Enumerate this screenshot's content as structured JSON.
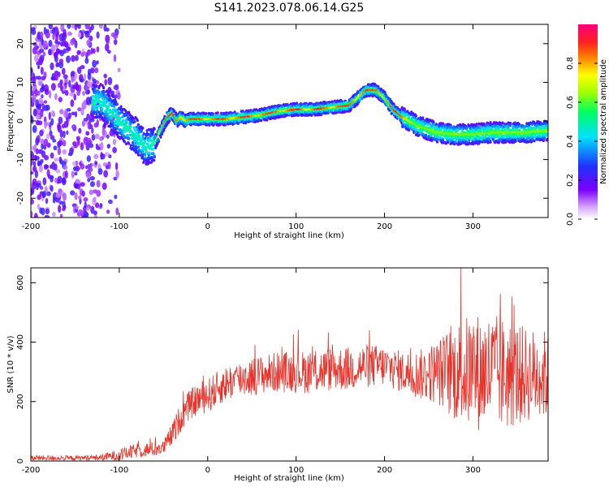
{
  "title": "S141.2023.078.06.14.G25",
  "chart_data": [
    {
      "type": "heatmap",
      "xlabel": "Height of straight line (km)",
      "ylabel": "Frequency (Hz)",
      "xlim": [
        -200,
        385
      ],
      "ylim": [
        -25,
        25
      ],
      "xticks": [
        -200,
        -100,
        0,
        100,
        200,
        300
      ],
      "yticks": [
        20,
        10,
        0,
        -10,
        -20
      ],
      "colorbar": {
        "label": "Normalized spectral amplitude",
        "range": [
          0.0,
          1.0
        ],
        "ticks": [
          0.0,
          0.2,
          0.4,
          0.6,
          0.8
        ],
        "colors": [
          "#ffffff",
          "#d9a8ff",
          "#7b00ff",
          "#2030ff",
          "#00e0ff",
          "#00ff60",
          "#a0ff00",
          "#ffff00",
          "#ff8000",
          "#ff2020",
          "#ff0080"
        ]
      },
      "ridge_frequency": {
        "x": [
          -120,
          -100,
          -80,
          -70,
          -60,
          -50,
          -45,
          -40,
          -35,
          -30,
          -25,
          -20,
          0,
          20,
          40,
          60,
          80,
          100,
          120,
          140,
          160,
          170,
          180,
          190,
          200,
          210,
          220,
          240,
          260,
          280,
          300,
          320,
          340,
          360,
          385
        ],
        "y": [
          5,
          0,
          -4,
          -7,
          -6,
          -1,
          1,
          2,
          0,
          1,
          0,
          0.5,
          0.5,
          0.5,
          1,
          1.5,
          2.5,
          3,
          3,
          3.5,
          4,
          6,
          8,
          8,
          6,
          3,
          1,
          -1.5,
          -3,
          -3.5,
          -3.5,
          -3,
          -3,
          -3,
          -2.5
        ]
      },
      "noise_region_x": [
        -200,
        -80
      ]
    },
    {
      "type": "line",
      "xlabel": "Height of straight line (km)",
      "ylabel": "SNR (10 * v/v)",
      "xlim": [
        -200,
        385
      ],
      "ylim": [
        0,
        650
      ],
      "xticks": [
        -200,
        -100,
        0,
        100,
        200,
        300
      ],
      "yticks": [
        0,
        200,
        400,
        600
      ],
      "color": "#e8322a",
      "envelope": {
        "x": [
          -200,
          -150,
          -120,
          -100,
          -80,
          -60,
          -50,
          -40,
          -30,
          -20,
          -10,
          0,
          20,
          40,
          60,
          80,
          100,
          120,
          140,
          160,
          180,
          200,
          220,
          240,
          260,
          280,
          300,
          320,
          340,
          360,
          385
        ],
        "mean": [
          10,
          10,
          12,
          20,
          35,
          40,
          45,
          90,
          150,
          190,
          210,
          220,
          260,
          280,
          290,
          300,
          300,
          300,
          310,
          310,
          320,
          320,
          300,
          290,
          300,
          300,
          300,
          300,
          290,
          290,
          290
        ],
        "spread": [
          10,
          8,
          12,
          20,
          25,
          25,
          25,
          40,
          50,
          50,
          55,
          60,
          60,
          65,
          65,
          70,
          70,
          75,
          75,
          75,
          75,
          70,
          70,
          85,
          110,
          170,
          200,
          200,
          190,
          160,
          150
        ]
      }
    }
  ]
}
